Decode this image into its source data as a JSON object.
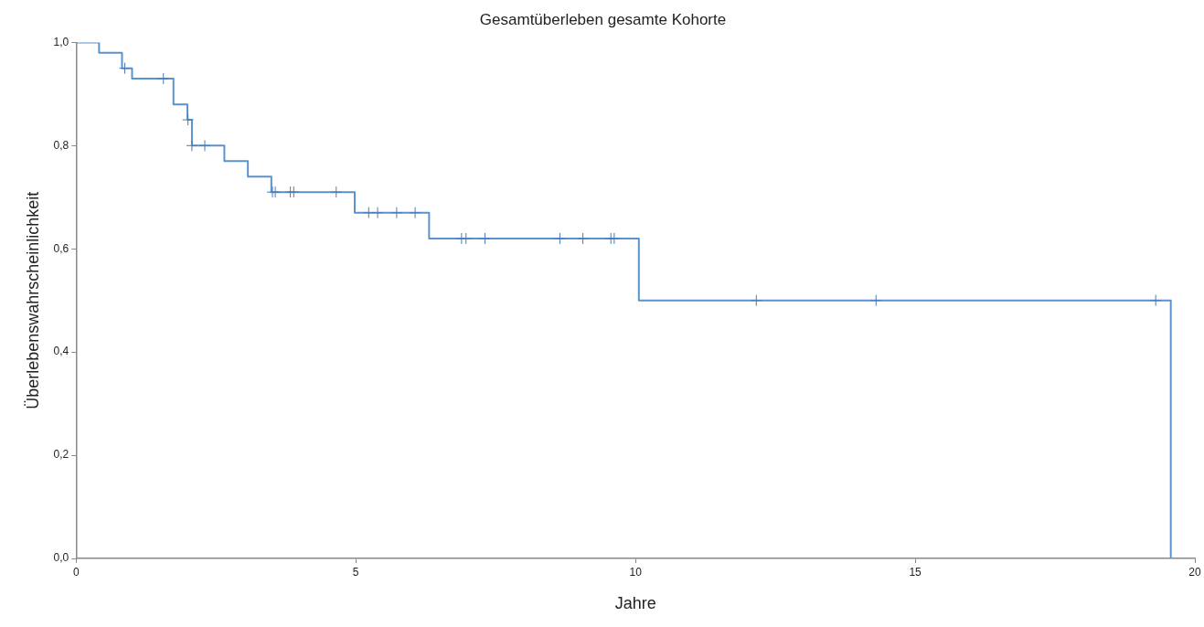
{
  "chart_data": {
    "type": "line",
    "title": "Gesamtüberleben gesamte Kohorte",
    "xlabel": "Jahre",
    "ylabel": "Überlebenswahrscheinlichkeit",
    "xlim": [
      0,
      20
    ],
    "xticks": [
      0,
      5,
      10,
      15,
      20
    ],
    "ylim": [
      0,
      1
    ],
    "yticks": [
      {
        "value": 0,
        "label": "0,0"
      },
      {
        "value": 0.2,
        "label": "0,2"
      },
      {
        "value": 0.4,
        "label": "0,4"
      },
      {
        "value": 0.6,
        "label": "0,6"
      },
      {
        "value": 0.8,
        "label": "0,8"
      },
      {
        "value": 1,
        "label": "1,0"
      }
    ],
    "grid": false,
    "legend": false,
    "marker": "none",
    "line_style": "solid",
    "series": [
      {
        "color": "#5b93cc",
        "x": [
          0,
          0.41,
          0.41,
          0.82,
          0.82,
          1.0,
          1.0,
          1.74,
          1.74,
          1.99,
          1.99,
          2.07,
          2.07,
          2.65,
          2.65,
          3.07,
          3.07,
          3.49,
          3.49,
          4.98,
          4.98,
          6.31,
          6.31,
          10.06,
          10.06,
          19.57,
          19.57
        ],
        "values": [
          1.0,
          1.0,
          0.98,
          0.98,
          0.95,
          0.95,
          0.93,
          0.93,
          0.88,
          0.88,
          0.85,
          0.85,
          0.8,
          0.8,
          0.77,
          0.77,
          0.74,
          0.74,
          0.71,
          0.71,
          0.67,
          0.67,
          0.62,
          0.62,
          0.5,
          0.5,
          0
        ]
      },
      {
        "type": "scatter",
        "marker": "cross",
        "color": "#4a7db8",
        "x": [
          0.87,
          1.56,
          2.0,
          2.07,
          2.3,
          3.51,
          3.56,
          3.83,
          3.89,
          4.65,
          5.23,
          5.39,
          5.73,
          6.06,
          6.89,
          6.97,
          7.31,
          8.65,
          9.06,
          9.56,
          9.62,
          12.16,
          14.3,
          19.3
        ],
        "values": [
          0.95,
          0.93,
          0.85,
          0.8,
          0.8,
          0.71,
          0.71,
          0.71,
          0.71,
          0.71,
          0.67,
          0.67,
          0.67,
          0.67,
          0.62,
          0.62,
          0.62,
          0.62,
          0.62,
          0.62,
          0.62,
          0.5,
          0.5,
          0.5
        ]
      }
    ]
  }
}
